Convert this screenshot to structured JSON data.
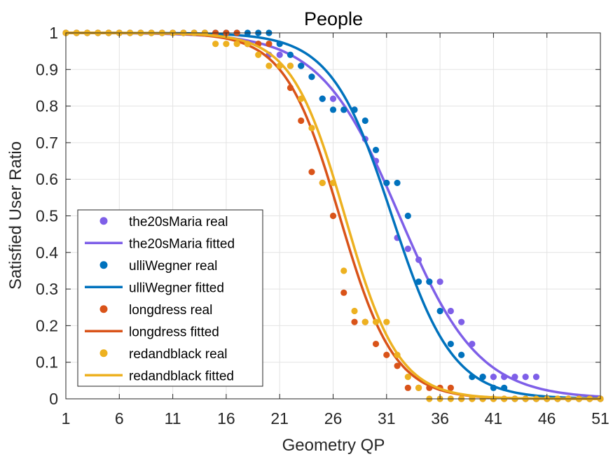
{
  "chart_data": {
    "type": "scatter",
    "title": "People",
    "xlabel": "Geometry QP",
    "ylabel": "Satisfied User Ratio",
    "xlim": [
      1,
      51
    ],
    "ylim": [
      0,
      1
    ],
    "xticks": [
      1,
      6,
      11,
      16,
      21,
      26,
      31,
      36,
      41,
      46,
      51
    ],
    "yticks": [
      0,
      0.1,
      0.2,
      0.3,
      0.4,
      0.5,
      0.6,
      0.7,
      0.8,
      0.9,
      1
    ],
    "ytick_labels": [
      "0",
      "0.1",
      "0.2",
      "0.3",
      "0.4",
      "0.5",
      "0.6",
      "0.7",
      "0.8",
      "0.9",
      "1"
    ],
    "grid": true,
    "legend_position": "bottom-left",
    "series": [
      {
        "name": "the20sMaria real",
        "kind": "points",
        "color": "#7E5FE8",
        "x": [
          1,
          2,
          3,
          4,
          5,
          6,
          7,
          8,
          9,
          10,
          11,
          12,
          13,
          14,
          15,
          16,
          17,
          18,
          19,
          20,
          21,
          22,
          23,
          24,
          25,
          26,
          27,
          28,
          29,
          30,
          31,
          32,
          33,
          34,
          35,
          36,
          37,
          38,
          39,
          40,
          41,
          42,
          43,
          44,
          45
        ],
        "y": [
          1,
          1,
          1,
          1,
          1,
          1,
          1,
          1,
          1,
          1,
          1,
          1,
          1,
          1,
          1,
          1,
          1,
          0.97,
          0.97,
          0.94,
          0.94,
          0.91,
          0.91,
          0.88,
          0.82,
          0.82,
          0.79,
          0.79,
          0.71,
          0.65,
          0.59,
          0.44,
          0.41,
          0.38,
          0.32,
          0.32,
          0.24,
          0.21,
          0.15,
          0.06,
          0.06,
          0.06,
          0.06,
          0.06,
          0.06
        ]
      },
      {
        "name": "the20sMaria fitted",
        "kind": "line",
        "color": "#7E5FE8",
        "mu": 32.2,
        "s": 3.7
      },
      {
        "name": "ulliWegner real",
        "kind": "points",
        "color": "#0072BD",
        "x": [
          1,
          2,
          3,
          4,
          5,
          6,
          7,
          8,
          9,
          10,
          11,
          12,
          13,
          14,
          15,
          16,
          17,
          18,
          19,
          20,
          21,
          22,
          23,
          24,
          25,
          26,
          27,
          28,
          29,
          30,
          31,
          32,
          33,
          34,
          35,
          36,
          37,
          38,
          39,
          40,
          41,
          42,
          43,
          44,
          45,
          46,
          47,
          48,
          49,
          50,
          51
        ],
        "y": [
          1,
          1,
          1,
          1,
          1,
          1,
          1,
          1,
          1,
          1,
          1,
          1,
          1,
          1,
          1,
          1,
          1,
          1,
          1,
          1,
          0.97,
          0.94,
          0.91,
          0.88,
          0.82,
          0.79,
          0.79,
          0.79,
          0.76,
          0.68,
          0.59,
          0.59,
          0.5,
          0.32,
          0.32,
          0.24,
          0.15,
          0.12,
          0.06,
          0.06,
          0.03,
          0.03,
          0,
          0,
          0,
          0,
          0,
          0,
          0,
          0,
          0
        ]
      },
      {
        "name": "ulliWegner fitted",
        "kind": "line",
        "color": "#0072BD",
        "mu": 31.5,
        "s": 2.85
      },
      {
        "name": "longdress real",
        "kind": "points",
        "color": "#D95319",
        "x": [
          1,
          2,
          3,
          4,
          5,
          6,
          7,
          8,
          9,
          10,
          11,
          12,
          13,
          14,
          15,
          16,
          17,
          18,
          19,
          20,
          21,
          22,
          23,
          24,
          25,
          26,
          27,
          28,
          29,
          30,
          31,
          32,
          33,
          34,
          35,
          36,
          37,
          38,
          39,
          40,
          41,
          42,
          43,
          44,
          45,
          46,
          47,
          48,
          49,
          50,
          51
        ],
        "y": [
          1,
          1,
          1,
          1,
          1,
          1,
          1,
          1,
          1,
          1,
          1,
          1,
          1,
          1,
          1,
          1,
          1,
          0.97,
          0.97,
          0.97,
          0.91,
          0.85,
          0.76,
          0.62,
          0.59,
          0.5,
          0.29,
          0.21,
          0.21,
          0.15,
          0.12,
          0.09,
          0.03,
          0.03,
          0.03,
          0.03,
          0.03,
          0,
          0,
          0,
          0,
          0,
          0,
          0,
          0,
          0,
          0,
          0,
          0,
          0,
          0
        ]
      },
      {
        "name": "longdress fitted",
        "kind": "line",
        "color": "#D95319",
        "mu": 26.6,
        "s": 2.55
      },
      {
        "name": "redandblack real",
        "kind": "points",
        "color": "#EDB120",
        "x": [
          1,
          2,
          3,
          4,
          5,
          6,
          7,
          8,
          9,
          10,
          11,
          12,
          13,
          14,
          15,
          16,
          17,
          18,
          19,
          20,
          21,
          22,
          23,
          24,
          25,
          26,
          27,
          28,
          29,
          30,
          31,
          32,
          33,
          34,
          35,
          36,
          37,
          38,
          39,
          40,
          41,
          42,
          43,
          44,
          45,
          46,
          47,
          48,
          49,
          50,
          51
        ],
        "y": [
          1,
          1,
          1,
          1,
          1,
          1,
          1,
          1,
          1,
          1,
          1,
          1,
          1,
          1,
          0.97,
          0.97,
          0.97,
          0.97,
          0.94,
          0.91,
          0.91,
          0.91,
          0.82,
          0.74,
          0.59,
          0.59,
          0.35,
          0.24,
          0.21,
          0.21,
          0.21,
          0.12,
          0.06,
          0.03,
          0,
          0,
          0,
          0,
          0,
          0,
          0,
          0,
          0,
          0,
          0,
          0,
          0,
          0,
          0,
          0,
          0
        ]
      },
      {
        "name": "redandblack fitted",
        "kind": "line",
        "color": "#EDB120",
        "mu": 27.1,
        "s": 2.5
      }
    ]
  }
}
